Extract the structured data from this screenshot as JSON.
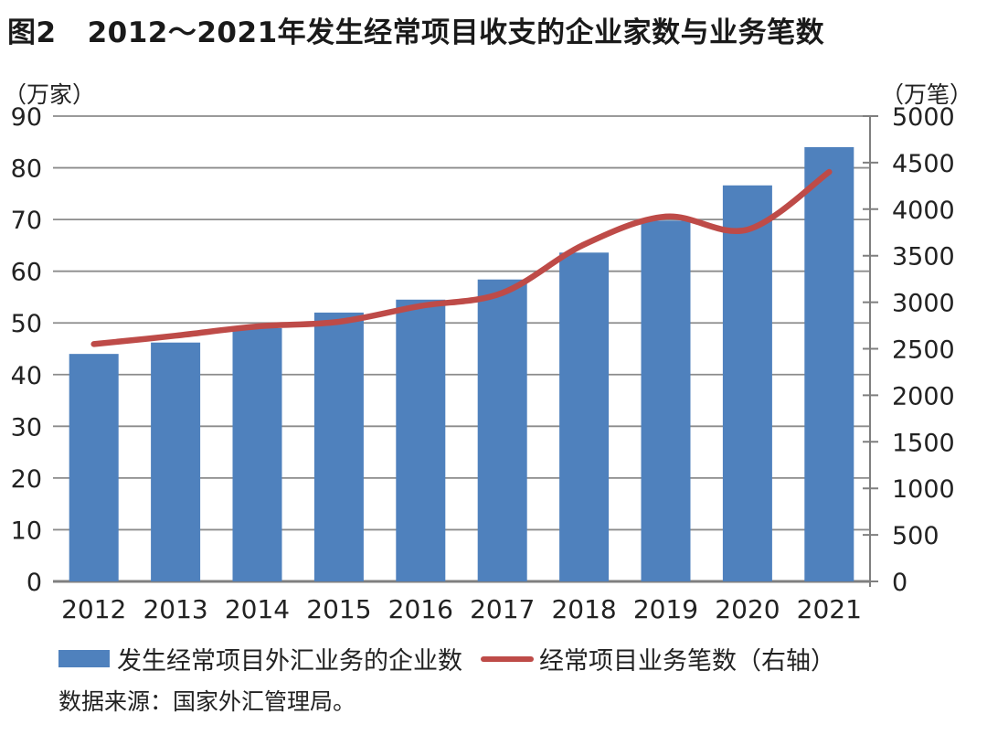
{
  "title": {
    "figure_label": "图2",
    "text": "2012～2021年发生经常项目收支的企业家数与业务笔数"
  },
  "chart_data": {
    "type": "bar+line combo",
    "categories": [
      "2012",
      "2013",
      "2014",
      "2015",
      "2016",
      "2017",
      "2018",
      "2019",
      "2020",
      "2021"
    ],
    "series": [
      {
        "name": "发生经常项目外汇业务的企业数",
        "type": "bar",
        "axis": "left",
        "color": "#4F81BD",
        "values": [
          44,
          46.2,
          49,
          52,
          54.5,
          58.4,
          63.6,
          69.8,
          76.6,
          84
        ]
      },
      {
        "name": "经常项目业务笔数（右轴）",
        "type": "line",
        "axis": "right",
        "color": "#BE4B48",
        "values": [
          2550,
          2640,
          2740,
          2790,
          2960,
          3100,
          3620,
          3920,
          3780,
          4400
        ]
      }
    ],
    "left_axis": {
      "unit": "（万家）",
      "min": 0,
      "max": 90,
      "step": 10,
      "tick_labels": [
        "0",
        "10",
        "20",
        "30",
        "40",
        "50",
        "60",
        "70",
        "80",
        "90"
      ]
    },
    "right_axis": {
      "unit": "（万笔）",
      "min": 0,
      "max": 5000,
      "step": 500,
      "tick_labels": [
        "0",
        "500",
        "1000",
        "1500",
        "2000",
        "2500",
        "3000",
        "3500",
        "4000",
        "4500",
        "5000"
      ]
    },
    "grid": "horizontal, left-axis intervals",
    "legend_position": "bottom",
    "colors": {
      "gridline": "#8c8c8c",
      "axis_line": "#7f7f7f",
      "tick_text": "#222222"
    }
  },
  "legend": {
    "items": [
      {
        "label": "发生经常项目外汇业务的企业数",
        "swatch": "bar",
        "color": "#4F81BD"
      },
      {
        "label": "经常项目业务笔数（右轴）",
        "swatch": "line",
        "color": "#BE4B48"
      }
    ]
  },
  "source": "数据来源：国家外汇管理局。"
}
